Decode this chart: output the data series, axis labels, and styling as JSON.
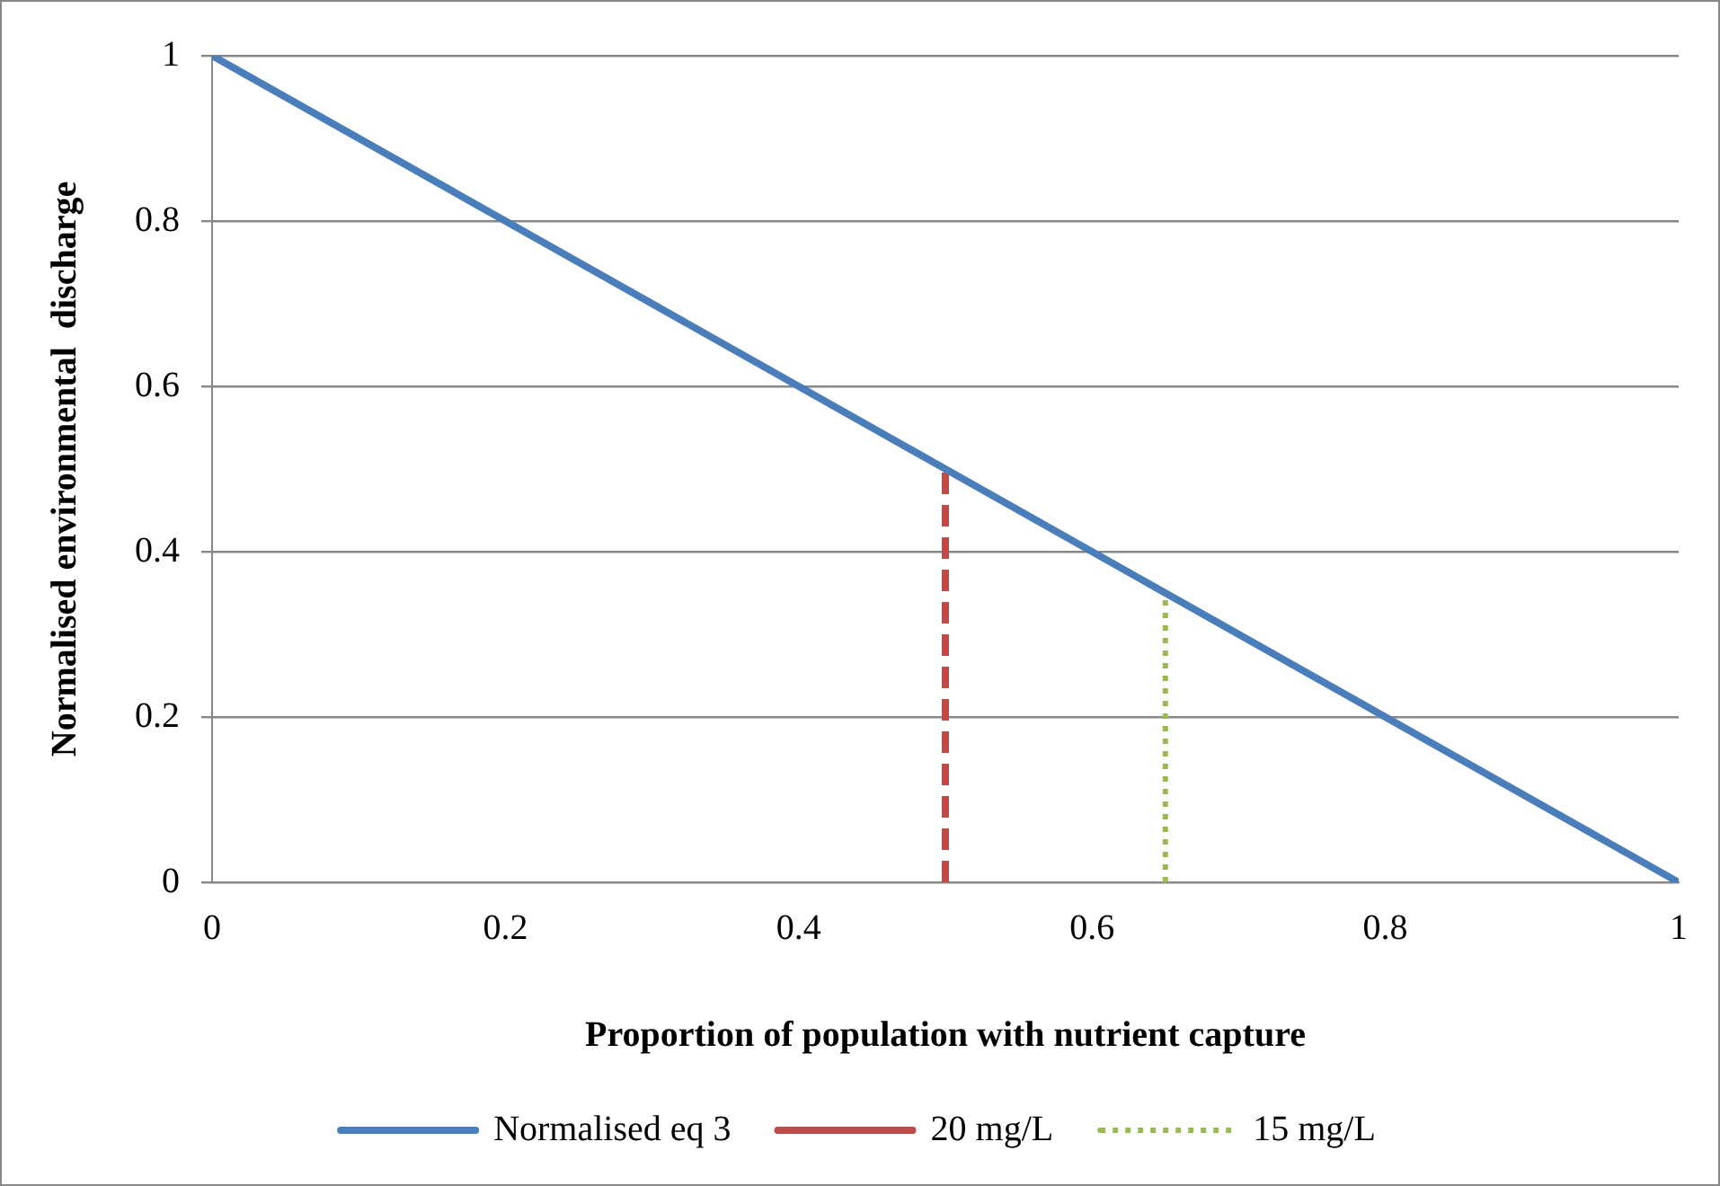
{
  "chart_data": {
    "type": "line",
    "xlabel": "Proportion of population with nutrient capture",
    "ylabel": "Normalised environmental  discharge",
    "xlim": [
      0,
      1
    ],
    "xticks": [
      0,
      0.2,
      0.4,
      0.6,
      0.8,
      1
    ],
    "ylim": [
      0,
      1
    ],
    "yticks": [
      0,
      0.2,
      0.4,
      0.6,
      0.8,
      1
    ],
    "grid": "y",
    "legend": "bottom",
    "marker": "none",
    "series": [
      {
        "name": "Normalised eq 3",
        "color": "#4a7ebb",
        "x": [
          0,
          1
        ],
        "values": [
          1,
          0
        ],
        "line_style": "solid"
      },
      {
        "name": "20 mg/L",
        "color": "#be4b48",
        "x": [
          0.5,
          0.5
        ],
        "values": [
          0,
          0.5
        ],
        "line_style": "dashed"
      },
      {
        "name": "15 mg/L",
        "color": "#98b954",
        "x": [
          0.65,
          0.65
        ],
        "values": [
          0,
          0.35
        ],
        "line_style": "dotted"
      }
    ]
  }
}
